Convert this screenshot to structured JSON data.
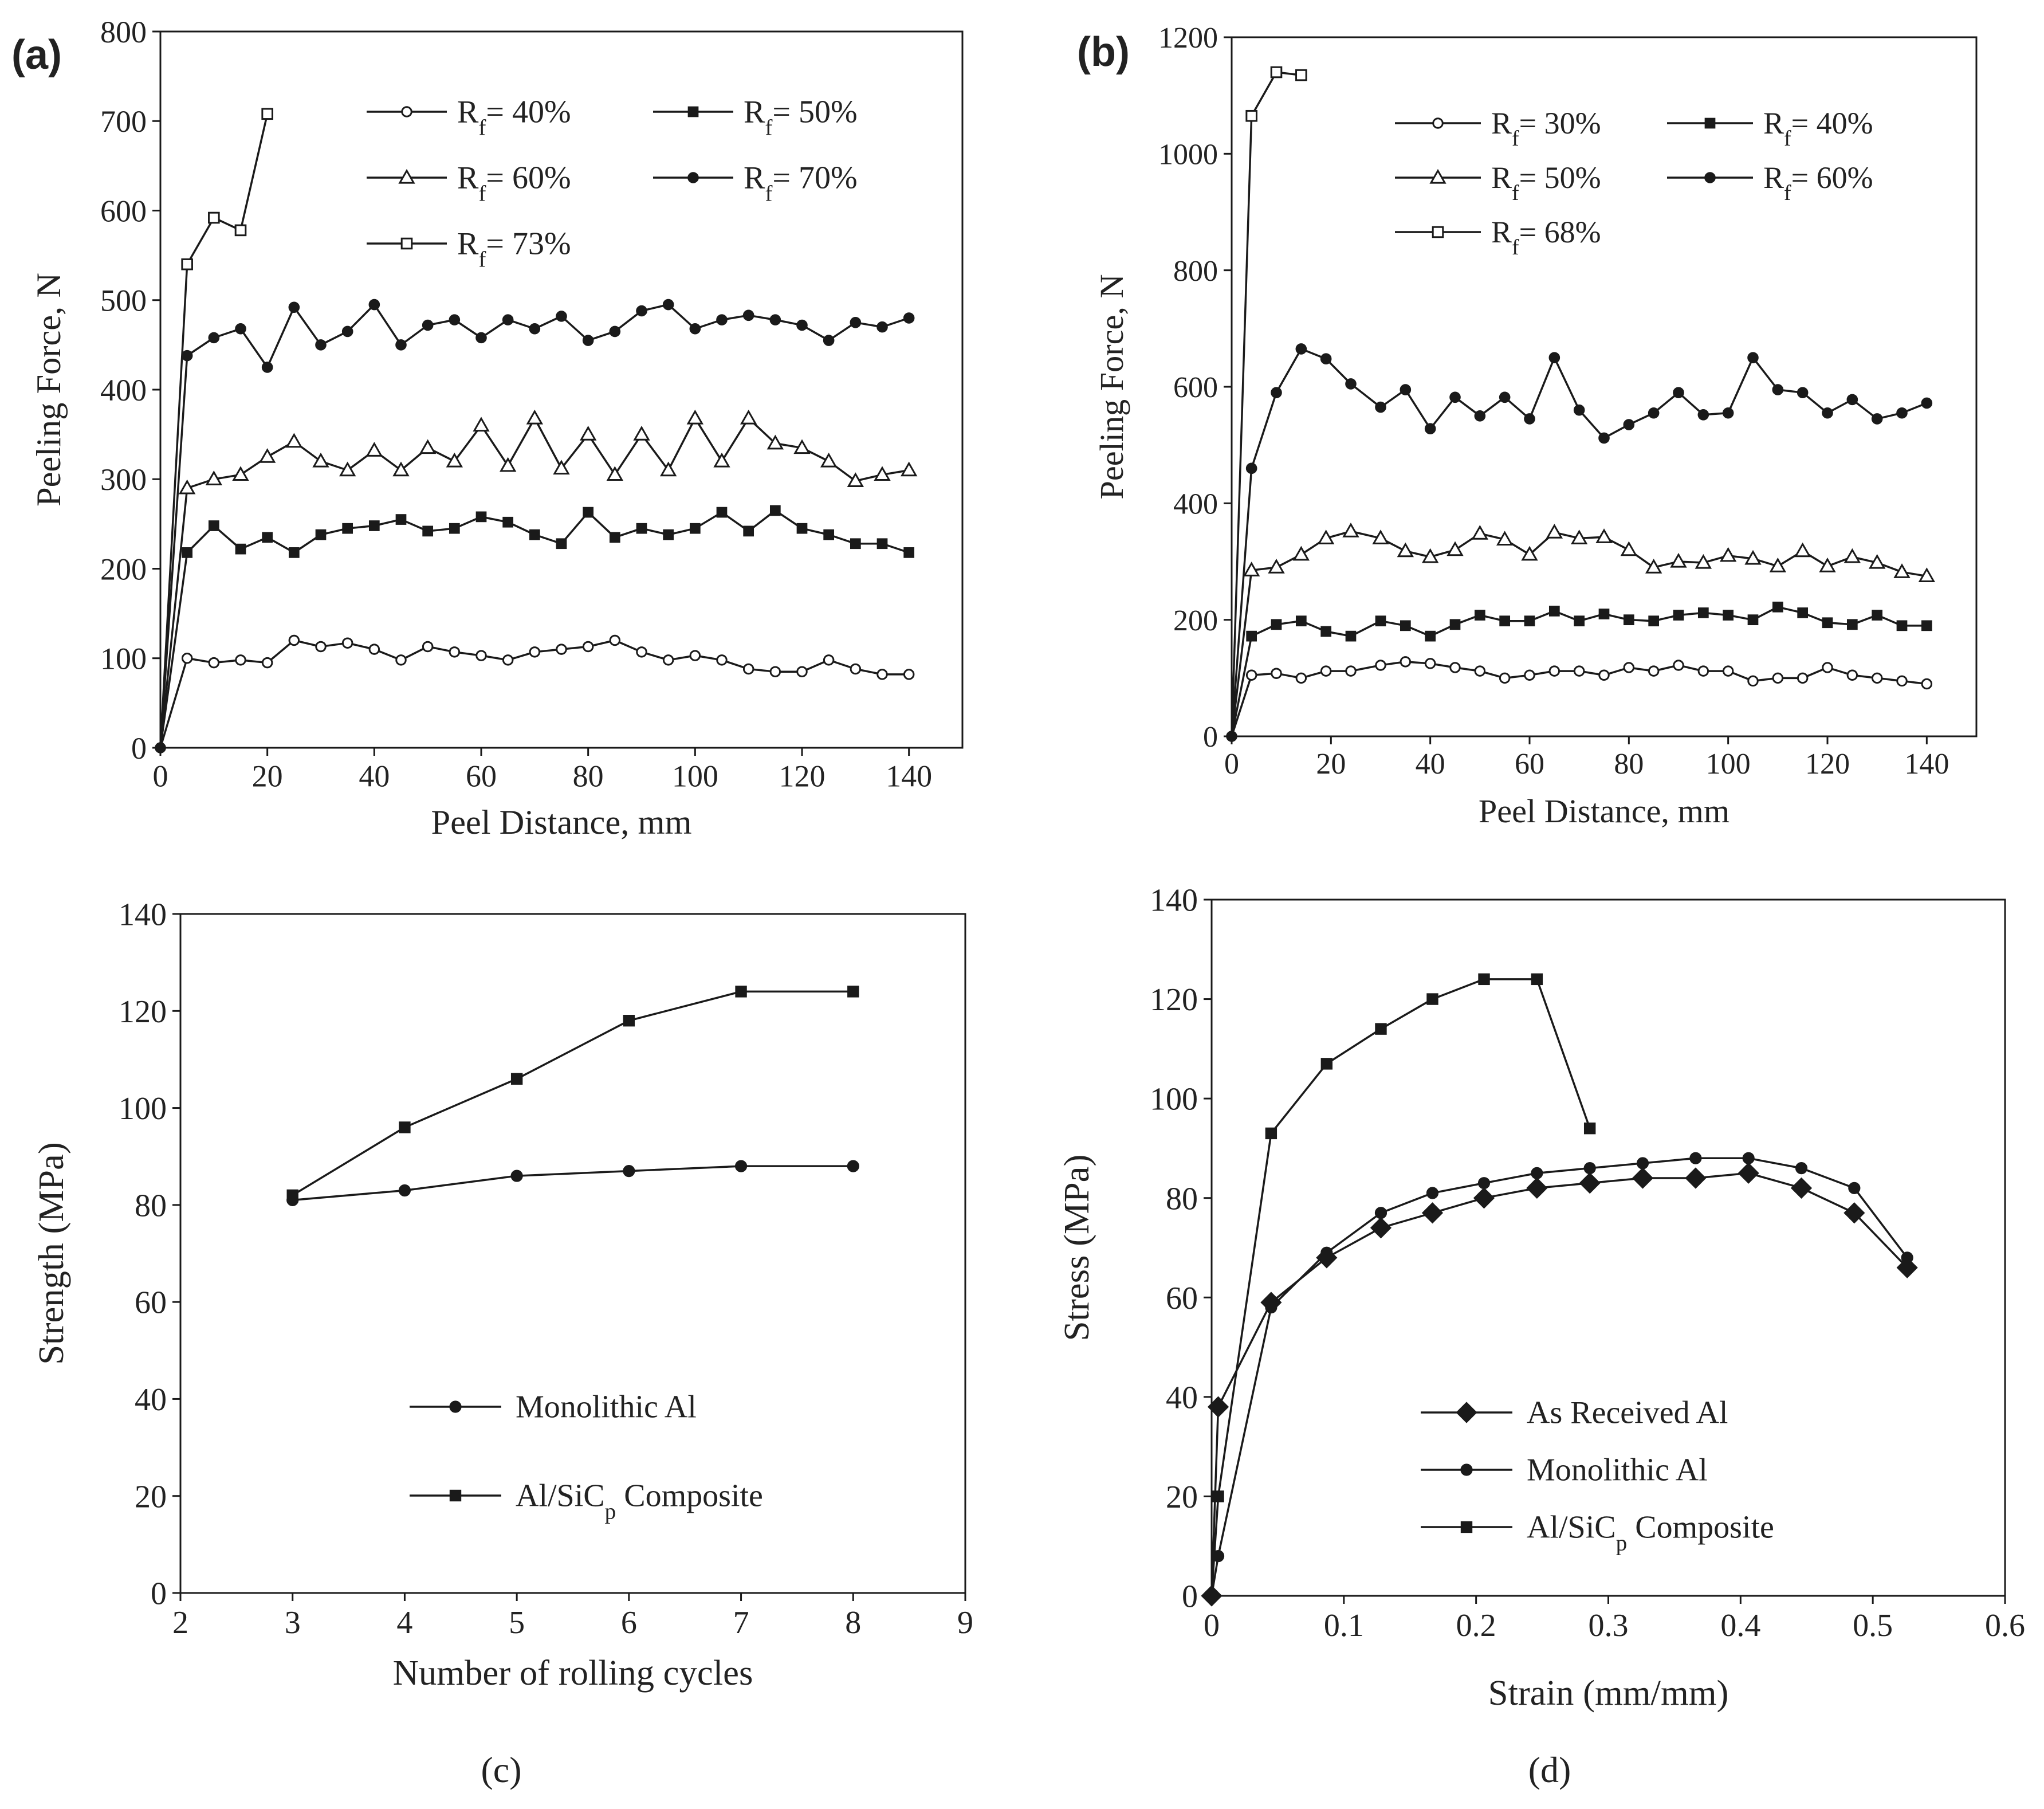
{
  "figure": {
    "captions": {
      "c": "(c)",
      "d": "(d)"
    }
  },
  "chart_data": [
    {
      "id": "a",
      "type": "line",
      "panel_label": "(a)",
      "xlabel": "Peel Distance, mm",
      "ylabel": "Peeling Force, N",
      "xlim": [
        0,
        150
      ],
      "ylim": [
        0,
        800
      ],
      "xticks": [
        0,
        20,
        40,
        60,
        80,
        100,
        120,
        140
      ],
      "yticks": [
        0,
        100,
        200,
        300,
        400,
        500,
        600,
        700,
        800
      ],
      "legend_position": "top-right",
      "legend_columns": 2,
      "series": [
        {
          "name": "R_f = 40%",
          "label_main": "R",
          "label_sub": "f",
          "label_rest": "= 40%",
          "marker": "circle-open",
          "x": [
            0,
            5,
            10,
            15,
            20,
            25,
            30,
            35,
            40,
            45,
            50,
            55,
            60,
            65,
            70,
            75,
            80,
            85,
            90,
            95,
            100,
            105,
            110,
            115,
            120,
            125,
            130,
            135,
            140
          ],
          "y": [
            0,
            100,
            95,
            98,
            95,
            120,
            113,
            117,
            110,
            98,
            113,
            107,
            103,
            98,
            107,
            110,
            113,
            120,
            107,
            98,
            103,
            98,
            88,
            85,
            85,
            98,
            88,
            82,
            82
          ]
        },
        {
          "name": "R_f = 50%",
          "label_main": "R",
          "label_sub": "f",
          "label_rest": "= 50%",
          "marker": "square-filled",
          "x": [
            0,
            5,
            10,
            15,
            20,
            25,
            30,
            35,
            40,
            45,
            50,
            55,
            60,
            65,
            70,
            75,
            80,
            85,
            90,
            95,
            100,
            105,
            110,
            115,
            120,
            125,
            130,
            135,
            140
          ],
          "y": [
            0,
            218,
            248,
            222,
            235,
            218,
            238,
            245,
            248,
            255,
            242,
            245,
            258,
            252,
            238,
            228,
            263,
            235,
            245,
            238,
            245,
            263,
            242,
            265,
            245,
            238,
            228,
            228,
            218
          ]
        },
        {
          "name": "R_f = 60%",
          "label_main": "R",
          "label_sub": "f",
          "label_rest": "= 60%",
          "marker": "triangle-open",
          "x": [
            0,
            5,
            10,
            15,
            20,
            25,
            30,
            35,
            40,
            45,
            50,
            55,
            60,
            65,
            70,
            75,
            80,
            85,
            90,
            95,
            100,
            105,
            110,
            115,
            120,
            125,
            130,
            135,
            140
          ],
          "y": [
            0,
            290,
            300,
            305,
            325,
            342,
            320,
            310,
            332,
            310,
            335,
            320,
            360,
            315,
            368,
            312,
            350,
            305,
            350,
            310,
            368,
            320,
            368,
            340,
            335,
            320,
            298,
            305,
            310
          ]
        },
        {
          "name": "R_f = 70%",
          "label_main": "R",
          "label_sub": "f",
          "label_rest": "= 70%",
          "marker": "circle-filled",
          "x": [
            0,
            5,
            10,
            15,
            20,
            25,
            30,
            35,
            40,
            45,
            50,
            55,
            60,
            65,
            70,
            75,
            80,
            85,
            90,
            95,
            100,
            105,
            110,
            115,
            120,
            125,
            130,
            135,
            140
          ],
          "y": [
            0,
            438,
            458,
            468,
            425,
            492,
            450,
            465,
            495,
            450,
            472,
            478,
            458,
            478,
            468,
            482,
            455,
            465,
            488,
            495,
            468,
            478,
            483,
            478,
            472,
            455,
            475,
            470,
            480
          ]
        },
        {
          "name": "R_f = 73%",
          "label_main": "R",
          "label_sub": "f",
          "label_rest": "= 73%",
          "marker": "square-open",
          "x": [
            0,
            5,
            10,
            15,
            20
          ],
          "y": [
            0,
            540,
            592,
            578,
            708
          ]
        }
      ]
    },
    {
      "id": "b",
      "type": "line",
      "panel_label": "(b)",
      "xlabel": "Peel Distance, mm",
      "ylabel": "Peeling Force, N",
      "xlim": [
        0,
        150
      ],
      "ylim": [
        0,
        1200
      ],
      "xticks": [
        0,
        20,
        40,
        60,
        80,
        100,
        120,
        140
      ],
      "yticks": [
        0,
        200,
        400,
        600,
        800,
        1000,
        1200
      ],
      "legend_position": "top-right",
      "legend_columns": 2,
      "series": [
        {
          "name": "R_f = 30%",
          "label_main": "R",
          "label_sub": "f",
          "label_rest": "= 30%",
          "marker": "circle-open",
          "x": [
            0,
            4,
            9,
            14,
            19,
            24,
            30,
            35,
            40,
            45,
            50,
            55,
            60,
            65,
            70,
            75,
            80,
            85,
            90,
            95,
            100,
            105,
            110,
            115,
            120,
            125,
            130,
            135,
            140
          ],
          "y": [
            0,
            105,
            108,
            100,
            112,
            112,
            122,
            128,
            125,
            118,
            112,
            100,
            105,
            112,
            112,
            105,
            118,
            112,
            122,
            112,
            112,
            95,
            100,
            100,
            118,
            105,
            100,
            95,
            90
          ]
        },
        {
          "name": "R_f = 40%",
          "label_main": "R",
          "label_sub": "f",
          "label_rest": "= 40%",
          "marker": "square-filled",
          "x": [
            0,
            4,
            9,
            14,
            19,
            24,
            30,
            35,
            40,
            45,
            50,
            55,
            60,
            65,
            70,
            75,
            80,
            85,
            90,
            95,
            100,
            105,
            110,
            115,
            120,
            125,
            130,
            135,
            140
          ],
          "y": [
            0,
            172,
            192,
            198,
            180,
            172,
            198,
            190,
            172,
            192,
            208,
            198,
            198,
            215,
            198,
            210,
            200,
            198,
            208,
            212,
            208,
            200,
            222,
            212,
            195,
            192,
            208,
            190,
            190
          ]
        },
        {
          "name": "R_f = 50%",
          "label_main": "R",
          "label_sub": "f",
          "label_rest": "= 50%",
          "marker": "triangle-open",
          "x": [
            0,
            4,
            9,
            14,
            19,
            24,
            30,
            35,
            40,
            45,
            50,
            55,
            60,
            65,
            70,
            75,
            80,
            85,
            90,
            95,
            100,
            105,
            110,
            115,
            120,
            125,
            130,
            135,
            140
          ],
          "y": [
            0,
            285,
            290,
            312,
            340,
            352,
            340,
            318,
            308,
            320,
            348,
            338,
            312,
            350,
            340,
            342,
            320,
            290,
            300,
            298,
            310,
            305,
            292,
            318,
            292,
            308,
            298,
            282,
            275
          ]
        },
        {
          "name": "R_f = 60%",
          "label_main": "R",
          "label_sub": "f",
          "label_rest": "= 60%",
          "marker": "circle-filled",
          "x": [
            0,
            4,
            9,
            14,
            19,
            24,
            30,
            35,
            40,
            45,
            50,
            55,
            60,
            65,
            70,
            75,
            80,
            85,
            90,
            95,
            100,
            105,
            110,
            115,
            120,
            125,
            130,
            135,
            140
          ],
          "y": [
            0,
            460,
            590,
            665,
            648,
            605,
            565,
            595,
            528,
            582,
            550,
            582,
            545,
            650,
            560,
            512,
            535,
            555,
            590,
            552,
            555,
            650,
            595,
            590,
            555,
            578,
            545,
            555,
            572
          ]
        },
        {
          "name": "R_f = 68%",
          "label_main": "R",
          "label_sub": "f",
          "label_rest": "= 68%",
          "marker": "square-open",
          "x": [
            0,
            4,
            9,
            14
          ],
          "y": [
            0,
            1065,
            1140,
            1135
          ]
        }
      ]
    },
    {
      "id": "c",
      "type": "line",
      "panel_label": "(c)",
      "xlabel": "Number of rolling cycles",
      "ylabel": "Strength (MPa)",
      "xlim": [
        2,
        9
      ],
      "ylim": [
        0,
        140
      ],
      "xticks": [
        2,
        3,
        4,
        5,
        6,
        7,
        8,
        9
      ],
      "yticks": [
        0,
        20,
        40,
        60,
        80,
        100,
        120,
        140
      ],
      "legend_position": "bottom-center",
      "series": [
        {
          "name": "Monolithic Al",
          "label_main": "Monolithic Al",
          "label_sub": "",
          "label_rest": "",
          "marker": "circle-filled",
          "x": [
            3,
            4,
            5,
            6,
            7,
            8
          ],
          "y": [
            81,
            83,
            86,
            87,
            88,
            88
          ]
        },
        {
          "name": "Al/SiCp Composite",
          "label_main": "Al/SiC",
          "label_sub": "p",
          "label_rest": " Composite",
          "marker": "square-filled",
          "x": [
            3,
            4,
            5,
            6,
            7,
            8
          ],
          "y": [
            82,
            96,
            106,
            118,
            124,
            124
          ]
        }
      ]
    },
    {
      "id": "d",
      "type": "line",
      "panel_label": "(d)",
      "xlabel": "Strain (mm/mm)",
      "ylabel": "Stress (MPa)",
      "xlim": [
        0,
        0.6
      ],
      "ylim": [
        0,
        140
      ],
      "xticks": [
        0,
        0.1,
        0.2,
        0.3,
        0.4,
        0.5,
        0.6
      ],
      "xtick_labels": [
        "0",
        "0.1",
        "0.2",
        "0.3",
        "0.4",
        "0.5",
        "0.6"
      ],
      "yticks": [
        0,
        20,
        40,
        60,
        80,
        100,
        120,
        140
      ],
      "legend_position": "bottom-center",
      "series": [
        {
          "name": "As Received Al",
          "label_main": "As Received Al",
          "label_sub": "",
          "label_rest": "",
          "marker": "diamond-filled",
          "x": [
            0,
            0.005,
            0.045,
            0.087,
            0.128,
            0.167,
            0.206,
            0.246,
            0.286,
            0.326,
            0.366,
            0.406,
            0.446,
            0.486,
            0.526
          ],
          "y": [
            0,
            38,
            59,
            68,
            74,
            77,
            80,
            82,
            83,
            84,
            84,
            85,
            82,
            77,
            66
          ]
        },
        {
          "name": "Monolithic Al",
          "label_main": "Monolithic Al",
          "label_sub": "",
          "label_rest": "",
          "marker": "circle-filled",
          "x": [
            0,
            0.005,
            0.045,
            0.087,
            0.128,
            0.167,
            0.206,
            0.246,
            0.286,
            0.326,
            0.366,
            0.406,
            0.446,
            0.486,
            0.526
          ],
          "y": [
            0,
            8,
            58,
            69,
            77,
            81,
            83,
            85,
            86,
            87,
            88,
            88,
            86,
            82,
            68
          ]
        },
        {
          "name": "Al/SiCp Composite",
          "label_main": "Al/SiC",
          "label_sub": "p",
          "label_rest": " Composite",
          "marker": "square-filled",
          "x": [
            0,
            0.005,
            0.045,
            0.087,
            0.128,
            0.167,
            0.206,
            0.246,
            0.286
          ],
          "y": [
            0,
            20,
            93,
            107,
            114,
            120,
            124,
            124,
            94
          ]
        }
      ]
    }
  ]
}
